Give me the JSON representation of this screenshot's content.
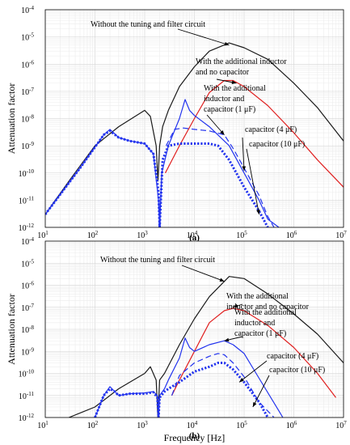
{
  "chart_data": [
    {
      "type": "line",
      "caption": "(a)",
      "xlabel": "Frequency [Hz]",
      "ylabel": "Attenuation factor",
      "xscale": "log",
      "yscale": "log",
      "xlim": [
        10,
        10000000
      ],
      "ylim": [
        1e-12,
        0.0001
      ],
      "grid": true,
      "series": [
        {
          "key": "black",
          "color": "#1a1a1a",
          "dash": "solid",
          "x": [
            10,
            30,
            100,
            300,
            1000,
            1300,
            1700,
            1850,
            2000,
            2300,
            3000,
            5000,
            10000,
            20000,
            50000,
            100000,
            300000,
            1000000,
            3000000,
            10000000
          ],
          "y": [
            3e-12,
            5e-11,
            1e-09,
            5e-09,
            2e-08,
            1.2e-08,
            1e-09,
            5e-11,
            1e-09,
            5e-09,
            2e-08,
            1.5e-07,
            8e-07,
            3e-06,
            6e-06,
            4e-06,
            1.5e-06,
            2e-07,
            2.5e-08,
            1.5e-09
          ]
        },
        {
          "key": "red",
          "color": "#e02020",
          "dash": "solid",
          "x": [
            2600,
            5000,
            10000,
            20000,
            40000,
            60000,
            100000,
            300000,
            1000000,
            3000000,
            10000000
          ],
          "y": [
            1e-10,
            1e-09,
            1e-08,
            9e-08,
            2.5e-07,
            2.5e-07,
            1.5e-07,
            3e-08,
            3e-09,
            3e-10,
            3e-11
          ]
        },
        {
          "key": "blue-solid",
          "color": "#2233ee",
          "dash": "solid",
          "x": [
            10,
            50,
            150,
            200,
            300,
            500,
            1000,
            1500,
            1900,
            2000,
            2200,
            3000,
            5000,
            6500,
            8000,
            10000,
            20000,
            50000,
            100000,
            200000,
            300000,
            500000
          ],
          "y": [
            3e-12,
            1.5e-10,
            2.5e-09,
            4e-09,
            2e-09,
            1.5e-09,
            1.2e-09,
            5e-10,
            1e-11,
            1e-12,
            1e-10,
            1e-09,
            1e-08,
            5e-08,
            2e-08,
            1.3e-08,
            5e-09,
            1e-09,
            1e-10,
            1e-11,
            2e-12,
            1e-12
          ]
        },
        {
          "key": "blue-dash",
          "color": "#2233ee",
          "dash": "dash",
          "x": [
            2700,
            4000,
            6000,
            10000,
            20000,
            40000,
            60000,
            100000,
            200000,
            300000,
            400000
          ],
          "y": [
            1e-09,
            4e-09,
            4.5e-09,
            4e-09,
            3.5e-09,
            2.5e-09,
            8e-10,
            1.5e-10,
            1.5e-11,
            2.5e-12,
            1e-12
          ]
        },
        {
          "key": "blue-dot",
          "color": "#2233ee",
          "dash": "dot",
          "x": [
            10,
            50,
            150,
            200,
            300,
            500,
            1000,
            1500,
            1900,
            2000,
            2300,
            3000,
            5000,
            10000,
            20000,
            30000,
            50000,
            100000,
            200000,
            300000
          ],
          "y": [
            3e-12,
            1.5e-10,
            2.5e-09,
            3.5e-09,
            2e-09,
            1.5e-09,
            1.2e-09,
            5e-10,
            2e-11,
            1e-12,
            3e-10,
            1e-09,
            1.2e-09,
            1.2e-09,
            1.2e-09,
            1e-09,
            3e-10,
            3e-11,
            4e-12,
            1e-12
          ]
        }
      ],
      "annotations": [
        {
          "lines": [
            "Without the tuning and filter circuit"
          ],
          "arrow_to": [
            50000,
            5e-06
          ]
        },
        {
          "lines": [
            "With the additional inductor",
            "and no capacitor"
          ],
          "arrow_to": [
            70000,
            2e-07
          ]
        },
        {
          "lines": [
            "With the additional",
            "inductor and",
            "capacitor (1 μF)"
          ],
          "arrow_to": [
            40000,
            2.5e-09
          ]
        },
        {
          "lines": [
            "capacitor (4 μF)"
          ],
          "arrow_to": [
            100000,
            1.2e-10
          ]
        },
        {
          "lines": [
            "capacitor (10 μF)"
          ],
          "arrow_to": [
            200000,
            3e-12
          ]
        }
      ]
    },
    {
      "type": "line",
      "caption": "(b)",
      "xlabel": "Frequency [Hz]",
      "ylabel": "Attenuation factor",
      "xscale": "log",
      "yscale": "log",
      "xlim": [
        10,
        10000000
      ],
      "ylim": [
        1e-12,
        0.0001
      ],
      "grid": true,
      "series": [
        {
          "key": "black",
          "color": "#1a1a1a",
          "dash": "solid",
          "x": [
            30,
            100,
            300,
            1000,
            1300,
            1700,
            1850,
            2000,
            2500,
            5000,
            10000,
            20000,
            50000,
            100000,
            300000,
            1000000,
            3000000,
            10000000
          ],
          "y": [
            1e-12,
            3e-12,
            2e-11,
            1e-10,
            2e-10,
            5e-11,
            1e-12,
            5e-11,
            1e-10,
            2e-09,
            3e-08,
            3e-07,
            2.5e-06,
            2e-06,
            4e-07,
            5e-08,
            6e-09,
            3e-10
          ]
        },
        {
          "key": "red",
          "color": "#e02020",
          "dash": "solid",
          "x": [
            3500,
            5000,
            10000,
            20000,
            40000,
            60000,
            100000,
            300000,
            1000000,
            3000000,
            7000000
          ],
          "y": [
            1e-11,
            5e-11,
            1e-09,
            2e-08,
            7e-08,
            9e-08,
            7e-08,
            1.5e-08,
            1.5e-09,
            1e-10,
            8e-12
          ]
        },
        {
          "key": "blue-solid",
          "color": "#2233ee",
          "dash": "solid",
          "x": [
            100,
            150,
            200,
            250,
            300,
            500,
            1000,
            1500,
            1800,
            1900,
            2000,
            2500,
            3000,
            5000,
            6500,
            8000,
            10000,
            20000,
            40000,
            60000,
            100000,
            200000,
            500000,
            600000
          ],
          "y": [
            1e-12,
            1e-11,
            2.5e-11,
            1.5e-11,
            1e-11,
            1.2e-11,
            1.3e-11,
            1.5e-11,
            1e-11,
            1e-12,
            1e-11,
            2e-11,
            5e-11,
            5e-10,
            4e-09,
            1.5e-09,
            1e-09,
            2e-09,
            3e-09,
            2e-09,
            8e-10,
            6e-11,
            2e-12,
            1e-12
          ]
        },
        {
          "key": "blue-dash",
          "color": "#2233ee",
          "dash": "dash",
          "x": [
            3500,
            5000,
            10000,
            20000,
            30000,
            40000,
            60000,
            100000,
            200000,
            400000
          ],
          "y": [
            1e-11,
            8e-11,
            3e-10,
            6e-10,
            8e-10,
            7e-10,
            3e-10,
            7e-11,
            5e-12,
            1e-12
          ]
        },
        {
          "key": "blue-dot",
          "color": "#2233ee",
          "dash": "dot",
          "x": [
            100,
            150,
            200,
            250,
            300,
            500,
            1000,
            1500,
            1800,
            1900,
            2000,
            2500,
            3000,
            5000,
            10000,
            20000,
            30000,
            40000,
            60000,
            100000,
            200000,
            300000
          ],
          "y": [
            1e-12,
            1e-11,
            2e-11,
            1.5e-11,
            1e-11,
            1.2e-11,
            1.2e-11,
            1.4e-11,
            8e-12,
            1e-12,
            8e-12,
            1.5e-11,
            2e-11,
            4e-11,
            1.2e-10,
            2e-10,
            3e-10,
            3e-10,
            1.5e-10,
            4e-11,
            5e-12,
            1e-12
          ]
        }
      ],
      "annotations": [
        {
          "lines": [
            "Without the tuning and filter circuit"
          ],
          "arrow_to": [
            40000,
            1.5e-06
          ]
        },
        {
          "lines": [
            "With the additional",
            "inductor and no capacitor"
          ],
          "arrow_to": [
            60000,
            1e-07
          ]
        },
        {
          "lines": [
            "With the additional",
            "inductor and",
            "capacitor (1 μF)"
          ],
          "arrow_to": [
            40000,
            3e-09
          ]
        },
        {
          "lines": [
            "capacitor (4 μF)"
          ],
          "arrow_to": [
            80000,
            4e-11
          ]
        },
        {
          "lines": [
            "capacitor (10 μF)"
          ],
          "arrow_to": [
            150000,
            3e-12
          ]
        }
      ]
    }
  ]
}
